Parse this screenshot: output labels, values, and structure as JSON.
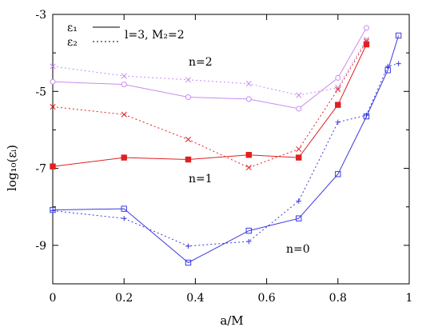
{
  "chart_data": {
    "type": "line",
    "xlabel": "a/M",
    "ylabel": "log₁₀(εᵢ)",
    "xlim": [
      0,
      1
    ],
    "ylim": [
      -10,
      -3
    ],
    "xticks": [
      0,
      0.2,
      0.4,
      0.6,
      0.8,
      1
    ],
    "xtick_labels": [
      "0",
      "0.2",
      "0.4",
      "0.6",
      "0.8",
      "1"
    ],
    "yticks": [
      -9,
      -7,
      -5,
      -3
    ],
    "ytick_labels": [
      "-9",
      "-7",
      "-5",
      "-3"
    ],
    "legend": {
      "position": "top-left",
      "entries": [
        {
          "label": "ε₁",
          "style": "solid"
        },
        {
          "label": "ε₂",
          "style": "dotted"
        }
      ]
    },
    "annotations": [
      "l=3, M₂=2",
      "n=2",
      "n=1",
      "n=0"
    ],
    "grid": false,
    "series": [
      {
        "id": "n2-e1",
        "style": "solid",
        "color": "#c88cf0",
        "marker": "circle",
        "x": [
          0,
          0.2,
          0.38,
          0.55,
          0.69,
          0.8,
          0.88
        ],
        "y": [
          -4.75,
          -4.82,
          -5.15,
          -5.2,
          -5.45,
          -4.65,
          -3.35
        ]
      },
      {
        "id": "n2-e2",
        "style": "dotted",
        "color": "#c88cf0",
        "marker": "x",
        "x": [
          0,
          0.2,
          0.38,
          0.55,
          0.69,
          0.8,
          0.88
        ],
        "y": [
          -4.35,
          -4.6,
          -4.7,
          -4.8,
          -5.1,
          -4.9,
          -3.65
        ]
      },
      {
        "id": "n1-e1",
        "style": "solid",
        "color": "#e02020",
        "marker": "filled-square",
        "x": [
          0,
          0.2,
          0.38,
          0.55,
          0.69,
          0.8,
          0.88
        ],
        "y": [
          -6.95,
          -6.72,
          -6.77,
          -6.65,
          -6.72,
          -5.35,
          -3.78
        ]
      },
      {
        "id": "n1-e2",
        "style": "dotted",
        "color": "#e02020",
        "marker": "x",
        "x": [
          0,
          0.2,
          0.38,
          0.55,
          0.69,
          0.8,
          0.88
        ],
        "y": [
          -5.4,
          -5.6,
          -6.25,
          -6.98,
          -6.5,
          -4.95,
          -3.7
        ]
      },
      {
        "id": "n0-e1",
        "style": "solid",
        "color": "#3a3ae0",
        "marker": "open-square",
        "x": [
          0,
          0.2,
          0.38,
          0.55,
          0.69,
          0.8,
          0.88,
          0.94,
          0.97
        ],
        "y": [
          -8.08,
          -8.05,
          -9.45,
          -8.62,
          -8.3,
          -7.15,
          -5.65,
          -4.45,
          -3.55
        ]
      },
      {
        "id": "n0-e2",
        "style": "dotted",
        "color": "#3a3ae0",
        "marker": "plus",
        "x": [
          0,
          0.2,
          0.38,
          0.55,
          0.69,
          0.8,
          0.88,
          0.94,
          0.97
        ],
        "y": [
          -8.1,
          -8.3,
          -9.02,
          -8.9,
          -7.85,
          -5.8,
          -5.62,
          -4.35,
          -4.28
        ]
      }
    ]
  }
}
